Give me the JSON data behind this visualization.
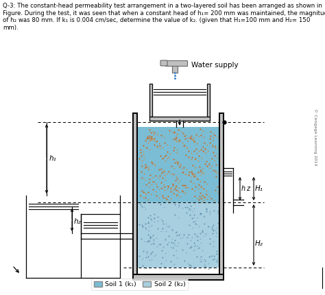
{
  "title_lines": [
    "Q-3: The constant-head permeability test arrangement in a two-layered soil has been arranged as shown in",
    "Figure. During the test, it was seen that when a constant head of h₁= 200 mm was maintained, the magnitude",
    "of h₂ was 80 mm. If k₁ is 0.004 cm/sec, determine the value of k₂. (given that H₁=100 mm and H₂= 150",
    "mm)."
  ],
  "water_supply_label": "Water supply",
  "copyright_text": "© Cengage Learning 2014",
  "soil1_label": "Soil 1 (k₁)",
  "soil2_label": "Soil 2 (k₂)",
  "soil1_color": "#7bbdd4",
  "soil2_color": "#a8cfe0",
  "gray_col": "#c0c0c0",
  "dark_gray": "#888888",
  "h1_label": "h₁",
  "h2_label": "h₂",
  "h_label": "h",
  "z_label": "z",
  "H1_label": "H₁",
  "H2_label": "H₂",
  "title_fontsize": 6.2,
  "label_fontsize": 7.5
}
